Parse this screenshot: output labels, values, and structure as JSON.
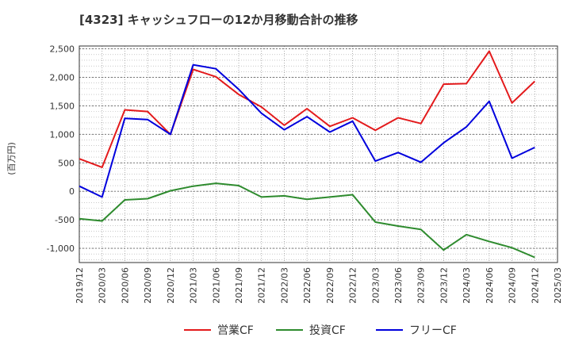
{
  "chart_data": {
    "type": "line",
    "title": "[4323]  キャッシュフローの12か月移動合計の推移",
    "ylabel": "(百万円)",
    "xlabel": "",
    "ylim": [
      -1250,
      2550
    ],
    "yticks": [
      -1000,
      -500,
      0,
      500,
      1000,
      1500,
      2000,
      2500
    ],
    "ytick_labels": [
      "-1,000",
      "-500",
      "0",
      "500",
      "1,000",
      "1,500",
      "2,000",
      "2,500"
    ],
    "categories": [
      "2019/12",
      "2020/03",
      "2020/06",
      "2020/09",
      "2020/12",
      "2021/03",
      "2021/06",
      "2021/09",
      "2021/12",
      "2022/03",
      "2022/06",
      "2022/09",
      "2022/12",
      "2023/03",
      "2023/06",
      "2023/09",
      "2023/12",
      "2024/03",
      "2024/06",
      "2024/09",
      "2024/12",
      "2025/03"
    ],
    "series": [
      {
        "name": "営業CF",
        "color": "#e31a1c",
        "values": [
          570,
          420,
          1430,
          1400,
          1000,
          2140,
          2010,
          1700,
          1480,
          1160,
          1450,
          1140,
          1290,
          1070,
          1290,
          1190,
          1880,
          1890,
          2460,
          1550,
          1930,
          null
        ]
      },
      {
        "name": "投資CF",
        "color": "#2e8b2e",
        "values": [
          -480,
          -520,
          -150,
          -130,
          10,
          90,
          140,
          100,
          -100,
          -80,
          -140,
          -100,
          -60,
          -540,
          -610,
          -670,
          -1030,
          -760,
          -880,
          -990,
          -1160,
          null
        ]
      },
      {
        "name": "フリーCF",
        "color": "#0000dd",
        "values": [
          90,
          -100,
          1280,
          1260,
          1000,
          2220,
          2150,
          1790,
          1370,
          1080,
          1310,
          1040,
          1230,
          530,
          680,
          510,
          850,
          1130,
          1580,
          580,
          770,
          null
        ]
      }
    ],
    "grid": true,
    "legend": "bottom"
  }
}
